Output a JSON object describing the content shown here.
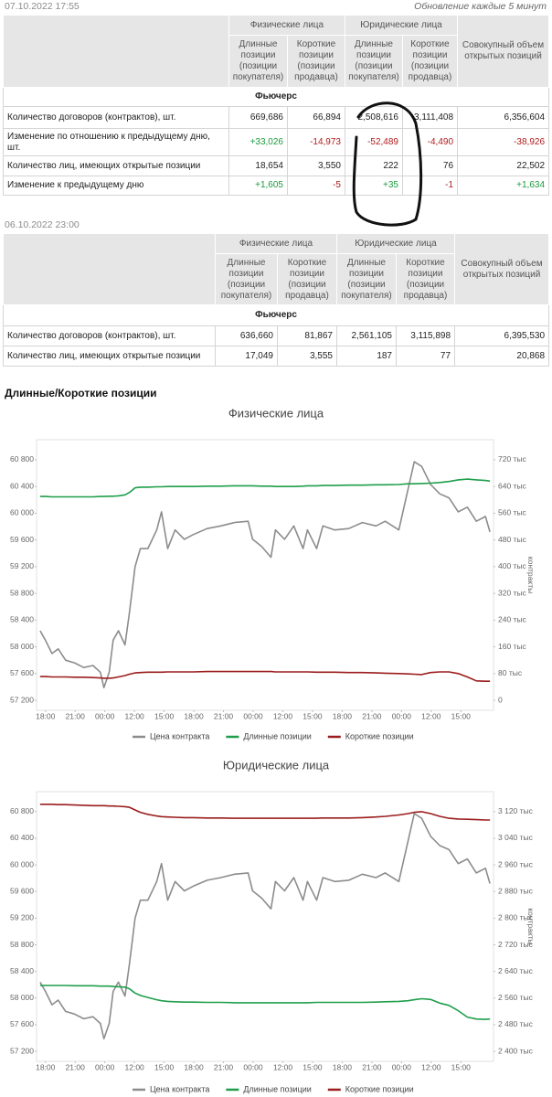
{
  "header": {
    "date": "07.10.2022 17:55",
    "update_note": "Обновление каждые 5 минут"
  },
  "table1": {
    "groups": [
      "Физические лица",
      "Юридические лица"
    ],
    "total_header": "Совокупный объем открытых позиций",
    "subheaders": [
      "Длинные позиции (позиции покупателя)",
      "Короткие позиции (позиции продавца)",
      "Длинные позиции (позиции покупателя)",
      "Короткие позиции (позиции продавца)"
    ],
    "section": "Фьючерс",
    "rows": [
      [
        "Количество договоров (контрактов), шт.",
        "669,686",
        "66,894",
        "2,508,616",
        "3,111,408",
        "6,356,604"
      ],
      [
        "Изменение по отношению к предыдущему дню, шт.",
        "+33,026",
        "-14,973",
        "-52,489",
        "-4,490",
        "-38,926"
      ],
      [
        "Количество лиц, имеющих открытые позиции",
        "18,654",
        "3,550",
        "222",
        "76",
        "22,502"
      ],
      [
        "Изменение к предыдущему дню",
        "+1,605",
        "-5",
        "+35",
        "-1",
        "+1,634"
      ]
    ]
  },
  "table2": {
    "date": "06.10.2022 23:00",
    "groups": [
      "Физические лица",
      "Юридические лица"
    ],
    "total_header": "Совокупный объем открытых позиций",
    "subheaders": [
      "Длинные позиции (позиции покупателя)",
      "Короткие позиции (позиции продавца)",
      "Длинные позиции (позиции покупателя)",
      "Короткие позиции (позиции продавца)"
    ],
    "section": "Фьючерс",
    "rows": [
      [
        "Количество договоров (контрактов), шт.",
        "636,660",
        "81,867",
        "2,561,105",
        "3,115,898",
        "6,395,530"
      ],
      [
        "Количество лиц, имеющих открытые позиции",
        "17,049",
        "3,555",
        "187",
        "77",
        "20,868"
      ]
    ]
  },
  "section_title": "Длинные/Короткие позиции",
  "chart_data": [
    {
      "type": "line",
      "title": "Физические лица",
      "y2label": "контракты",
      "x": [
        -0.18,
        0,
        0.22,
        0.43,
        0.68,
        0.98,
        1.29,
        1.6,
        1.85,
        1.97,
        2.15,
        2.28,
        2.46,
        2.68,
        2.83,
        3.02,
        3.2,
        3.45,
        3.75,
        3.91,
        4.12,
        4.37,
        4.68,
        4.98,
        5.45,
        5.91,
        6.37,
        6.83,
        6.98,
        7.29,
        7.6,
        7.75,
        8.06,
        8.37,
        8.68,
        8.83,
        9.14,
        9.35,
        9.75,
        10.22,
        10.68,
        11.14,
        11.45,
        11.91,
        12.22,
        12.43,
        12.68,
        12.98,
        13.29,
        13.6,
        13.91,
        14.22,
        14.52,
        14.83,
        14.98
      ],
      "xlim": [
        -0.3,
        15.1
      ],
      "xticks": [
        {
          "value": 0,
          "label": "18:00"
        },
        {
          "value": 1,
          "label": "21:00"
        },
        {
          "value": 2,
          "label": "00:00"
        },
        {
          "value": 3,
          "label": "12:00"
        },
        {
          "value": 4,
          "label": "15:00"
        },
        {
          "value": 5,
          "label": "18:00"
        },
        {
          "value": 6,
          "label": "21:00"
        },
        {
          "value": 7,
          "label": "00:00"
        },
        {
          "value": 8,
          "label": "12:00"
        },
        {
          "value": 9,
          "label": "15:00"
        },
        {
          "value": 10,
          "label": "18:00"
        },
        {
          "value": 11,
          "label": "21:00"
        },
        {
          "value": 12,
          "label": "00:00"
        },
        {
          "value": 13,
          "label": "12:00"
        },
        {
          "value": 14,
          "label": "15:00"
        }
      ],
      "ylim": [
        57050,
        61100
      ],
      "yticks": [
        {
          "value": 57200,
          "label": "57 200"
        },
        {
          "value": 57600,
          "label": "57 600"
        },
        {
          "value": 58000,
          "label": "58 000"
        },
        {
          "value": 58400,
          "label": "58 400"
        },
        {
          "value": 58800,
          "label": "58 800"
        },
        {
          "value": 59200,
          "label": "59 200"
        },
        {
          "value": 59600,
          "label": "59 600"
        },
        {
          "value": 60000,
          "label": "60 000"
        },
        {
          "value": 60400,
          "label": "60 400"
        },
        {
          "value": 60800,
          "label": "60 800"
        }
      ],
      "y2lim": [
        -30,
        780
      ],
      "y2ticks": [
        0,
        {
          "value": 80,
          "label": "80 тыс"
        },
        {
          "value": 160,
          "label": "160 тыс"
        },
        {
          "value": 240,
          "label": "240 тыс"
        },
        {
          "value": 320,
          "label": "320 тыс"
        },
        {
          "value": 400,
          "label": "400 тыс"
        },
        {
          "value": 480,
          "label": "480 тыс"
        },
        {
          "value": 560,
          "label": "560 тыс"
        },
        {
          "value": 640,
          "label": "640 тыс"
        },
        {
          "value": 720,
          "label": "720 тыс"
        }
      ],
      "series": [
        {
          "name": "Цена контракта",
          "color": "#8c8c8c",
          "values": [
            58240,
            58100,
            57900,
            57970,
            57800,
            57760,
            57690,
            57720,
            57620,
            57390,
            57620,
            58100,
            58240,
            58030,
            58510,
            59200,
            59470,
            59470,
            59750,
            60020,
            59470,
            59750,
            59610,
            59680,
            59770,
            59810,
            59860,
            59880,
            59610,
            59500,
            59340,
            59750,
            59610,
            59810,
            59470,
            59750,
            59470,
            59810,
            59750,
            59770,
            59860,
            59810,
            59880,
            59750,
            60360,
            60770,
            60700,
            60430,
            60290,
            60230,
            60020,
            60090,
            59880,
            59950,
            59720
          ]
        },
        {
          "name": "Длинные позиции",
          "color": "#1e9e4a",
          "axis": "y2",
          "values": [
            610,
            610,
            609,
            609,
            609,
            609,
            609,
            609,
            610,
            610,
            611,
            611,
            612,
            615,
            622,
            636,
            638,
            638,
            639,
            639,
            640,
            640,
            640,
            640,
            641,
            641,
            642,
            642,
            642,
            641,
            641,
            640,
            640,
            640,
            641,
            642,
            642,
            643,
            643,
            644,
            644,
            645,
            645,
            646,
            648,
            648,
            649,
            650,
            652,
            655,
            660,
            662,
            660,
            658,
            656
          ]
        },
        {
          "name": "Короткие позиции",
          "color": "#9b1c1c",
          "axis": "y2",
          "values": [
            71,
            71,
            70,
            70,
            70,
            69,
            69,
            68,
            67,
            66,
            66,
            67,
            70,
            74,
            78,
            82,
            83,
            84,
            84,
            84,
            85,
            85,
            85,
            85,
            86,
            86,
            86,
            86,
            86,
            86,
            86,
            85,
            85,
            85,
            85,
            85,
            84,
            84,
            84,
            83,
            83,
            82,
            81,
            80,
            79,
            78,
            77,
            83,
            85,
            85,
            80,
            70,
            58,
            57,
            57
          ]
        }
      ]
    },
    {
      "type": "line",
      "title": "Юридические лица",
      "y2label": "контракты",
      "x": [
        -0.18,
        0,
        0.22,
        0.43,
        0.68,
        0.98,
        1.29,
        1.6,
        1.85,
        1.97,
        2.15,
        2.28,
        2.46,
        2.68,
        2.83,
        3.02,
        3.2,
        3.45,
        3.75,
        3.91,
        4.12,
        4.37,
        4.68,
        4.98,
        5.45,
        5.91,
        6.37,
        6.83,
        6.98,
        7.29,
        7.6,
        7.75,
        8.06,
        8.37,
        8.68,
        8.83,
        9.14,
        9.35,
        9.75,
        10.22,
        10.68,
        11.14,
        11.45,
        11.91,
        12.22,
        12.43,
        12.68,
        12.98,
        13.29,
        13.6,
        13.91,
        14.22,
        14.52,
        14.83,
        14.98
      ],
      "xlim": [
        -0.3,
        15.1
      ],
      "xticks": [
        {
          "value": 0,
          "label": "18:00"
        },
        {
          "value": 1,
          "label": "21:00"
        },
        {
          "value": 2,
          "label": "00:00"
        },
        {
          "value": 3,
          "label": "12:00"
        },
        {
          "value": 4,
          "label": "15:00"
        },
        {
          "value": 5,
          "label": "18:00"
        },
        {
          "value": 6,
          "label": "21:00"
        },
        {
          "value": 7,
          "label": "00:00"
        },
        {
          "value": 8,
          "label": "12:00"
        },
        {
          "value": 9,
          "label": "15:00"
        },
        {
          "value": 10,
          "label": "18:00"
        },
        {
          "value": 11,
          "label": "21:00"
        },
        {
          "value": 12,
          "label": "00:00"
        },
        {
          "value": 13,
          "label": "12:00"
        },
        {
          "value": 14,
          "label": "15:00"
        }
      ],
      "ylim": [
        57050,
        61100
      ],
      "yticks": [
        {
          "value": 57200,
          "label": "57 200"
        },
        {
          "value": 57600,
          "label": "57 600"
        },
        {
          "value": 58000,
          "label": "58 000"
        },
        {
          "value": 58400,
          "label": "58 400"
        },
        {
          "value": 58800,
          "label": "58 800"
        },
        {
          "value": 59200,
          "label": "59 200"
        },
        {
          "value": 59600,
          "label": "59 600"
        },
        {
          "value": 60000,
          "label": "60 000"
        },
        {
          "value": 60400,
          "label": "60 400"
        },
        {
          "value": 60800,
          "label": "60 800"
        }
      ],
      "y2lim": [
        2370,
        3180
      ],
      "y2ticks": [
        {
          "value": 2400,
          "label": "2 400 тыс"
        },
        {
          "value": 2480,
          "label": "2 480 тыс"
        },
        {
          "value": 2560,
          "label": "2 560 тыс"
        },
        {
          "value": 2640,
          "label": "2 640 тыс"
        },
        {
          "value": 2720,
          "label": "2 720 тыс"
        },
        {
          "value": 2800,
          "label": "2 800 тыс"
        },
        {
          "value": 2880,
          "label": "2 880 тыс"
        },
        {
          "value": 2960,
          "label": "2 960 тыс"
        },
        {
          "value": 3040,
          "label": "3 040 тыс"
        },
        {
          "value": 3120,
          "label": "3 120 тыс"
        }
      ],
      "series": [
        {
          "name": "Цена контракта",
          "color": "#8c8c8c",
          "values": [
            58240,
            58100,
            57900,
            57970,
            57800,
            57760,
            57690,
            57720,
            57620,
            57390,
            57620,
            58100,
            58240,
            58030,
            58510,
            59200,
            59470,
            59470,
            59750,
            60020,
            59470,
            59750,
            59610,
            59680,
            59770,
            59810,
            59860,
            59880,
            59610,
            59500,
            59340,
            59750,
            59610,
            59810,
            59470,
            59750,
            59470,
            59810,
            59750,
            59770,
            59860,
            59810,
            59880,
            59750,
            60360,
            60770,
            60700,
            60430,
            60290,
            60230,
            60020,
            60090,
            59880,
            59950,
            59720
          ]
        },
        {
          "name": "Длинные позиции",
          "color": "#1e9e4a",
          "axis": "y2",
          "values": [
            2598,
            2598,
            2598,
            2598,
            2598,
            2597,
            2597,
            2597,
            2596,
            2596,
            2596,
            2595,
            2594,
            2593,
            2588,
            2575,
            2568,
            2562,
            2555,
            2552,
            2550,
            2549,
            2548,
            2548,
            2547,
            2547,
            2546,
            2546,
            2546,
            2546,
            2546,
            2546,
            2546,
            2546,
            2546,
            2546,
            2547,
            2547,
            2547,
            2547,
            2547,
            2548,
            2549,
            2550,
            2552,
            2555,
            2558,
            2556,
            2545,
            2538,
            2522,
            2503,
            2497,
            2496,
            2497
          ]
        },
        {
          "name": "Короткие позиции",
          "color": "#9b1c1c",
          "axis": "y2",
          "values": [
            3142,
            3142,
            3142,
            3141,
            3141,
            3140,
            3139,
            3138,
            3138,
            3138,
            3137,
            3137,
            3136,
            3135,
            3133,
            3125,
            3118,
            3112,
            3107,
            3105,
            3104,
            3103,
            3102,
            3102,
            3101,
            3101,
            3100,
            3100,
            3100,
            3100,
            3100,
            3100,
            3100,
            3100,
            3100,
            3100,
            3100,
            3101,
            3101,
            3101,
            3102,
            3104,
            3106,
            3110,
            3114,
            3118,
            3120,
            3114,
            3106,
            3100,
            3098,
            3097,
            3096,
            3095,
            3095
          ]
        }
      ]
    }
  ]
}
